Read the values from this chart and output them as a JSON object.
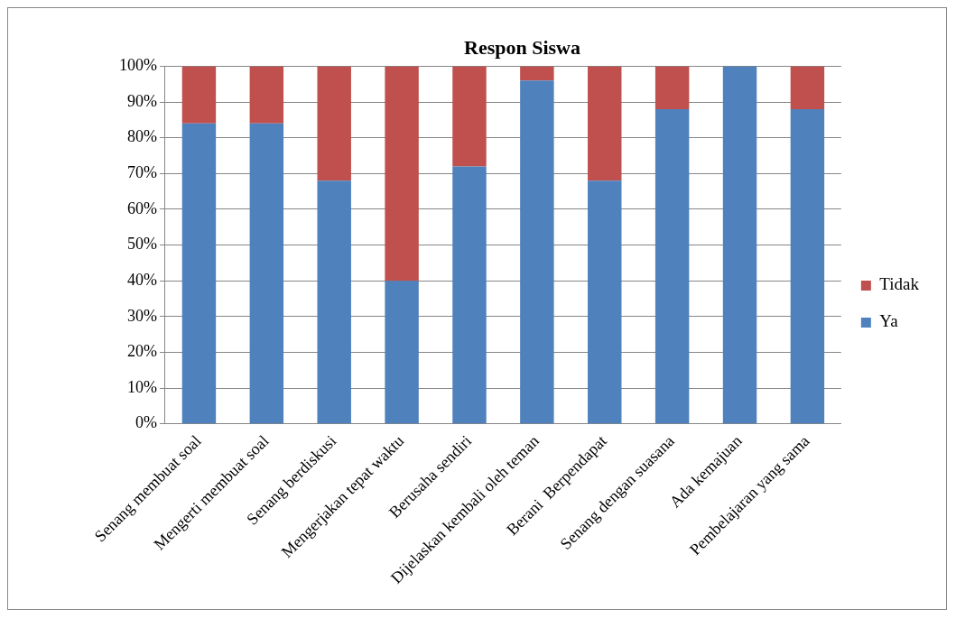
{
  "chart_data": {
    "type": "bar",
    "title": "Respon Siswa",
    "stacked": true,
    "legend": "right",
    "grid": "y",
    "categories": [
      "Senang membuat soal",
      "Mengerti membuat soal",
      "Senang berdiskusi",
      "Mengerjakan tepat waktu",
      "Berusaha sendiri",
      "Dijelaskan kembali oleh teman",
      "Berani  Berpendapat",
      "Senang dengan suasana",
      "Ada kemajuan",
      "Pembelajaran yang sama"
    ],
    "series": [
      {
        "name": "Ya",
        "color": "#4f81bd",
        "values": [
          84,
          84,
          68,
          40,
          72,
          96,
          68,
          88,
          100,
          88
        ]
      },
      {
        "name": "Tidak",
        "color": "#c0504d",
        "values": [
          16,
          16,
          32,
          60,
          28,
          4,
          32,
          12,
          0,
          12
        ]
      }
    ],
    "ylim": [
      0,
      100
    ],
    "yticks": [
      {
        "value": 0,
        "label": "0%"
      },
      {
        "value": 10,
        "label": "10%"
      },
      {
        "value": 20,
        "label": "20%"
      },
      {
        "value": 30,
        "label": "30%"
      },
      {
        "value": 40,
        "label": "40%"
      },
      {
        "value": 50,
        "label": "50%"
      },
      {
        "value": 60,
        "label": "60%"
      },
      {
        "value": 70,
        "label": "70%"
      },
      {
        "value": 80,
        "label": "80%"
      },
      {
        "value": 90,
        "label": "90%"
      },
      {
        "value": 100,
        "label": "100%"
      }
    ]
  }
}
